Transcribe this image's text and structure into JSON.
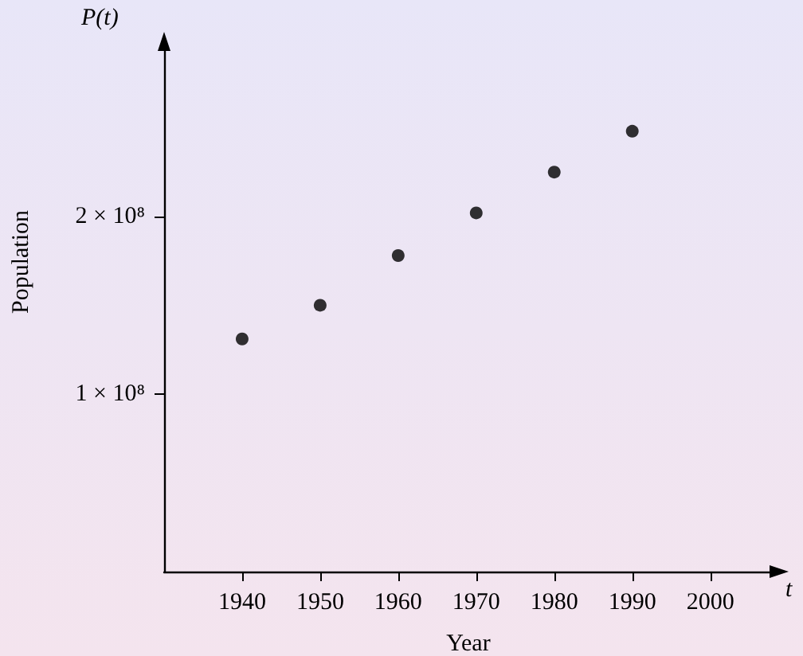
{
  "chart_data": {
    "type": "scatter",
    "xlabel": "Year",
    "ylabel": "Population",
    "annotations": [
      "P(t)",
      "t"
    ],
    "x": [
      1940,
      1950,
      1960,
      1970,
      1980,
      1990
    ],
    "values": [
      131000000,
      150000000,
      178000000,
      202000000,
      225000000,
      248000000
    ],
    "color": "#000000",
    "marker": "circle",
    "xlim": [
      1930,
      2008
    ],
    "xticks": [
      1940,
      1950,
      1960,
      1970,
      1980,
      1990,
      2000
    ],
    "ylim": [
      0,
      295000000
    ],
    "yticks": [
      {
        "value": 100000000,
        "label": "1 × 10⁸"
      },
      {
        "value": 200000000,
        "label": "2 × 10⁸"
      }
    ],
    "grid": false
  }
}
